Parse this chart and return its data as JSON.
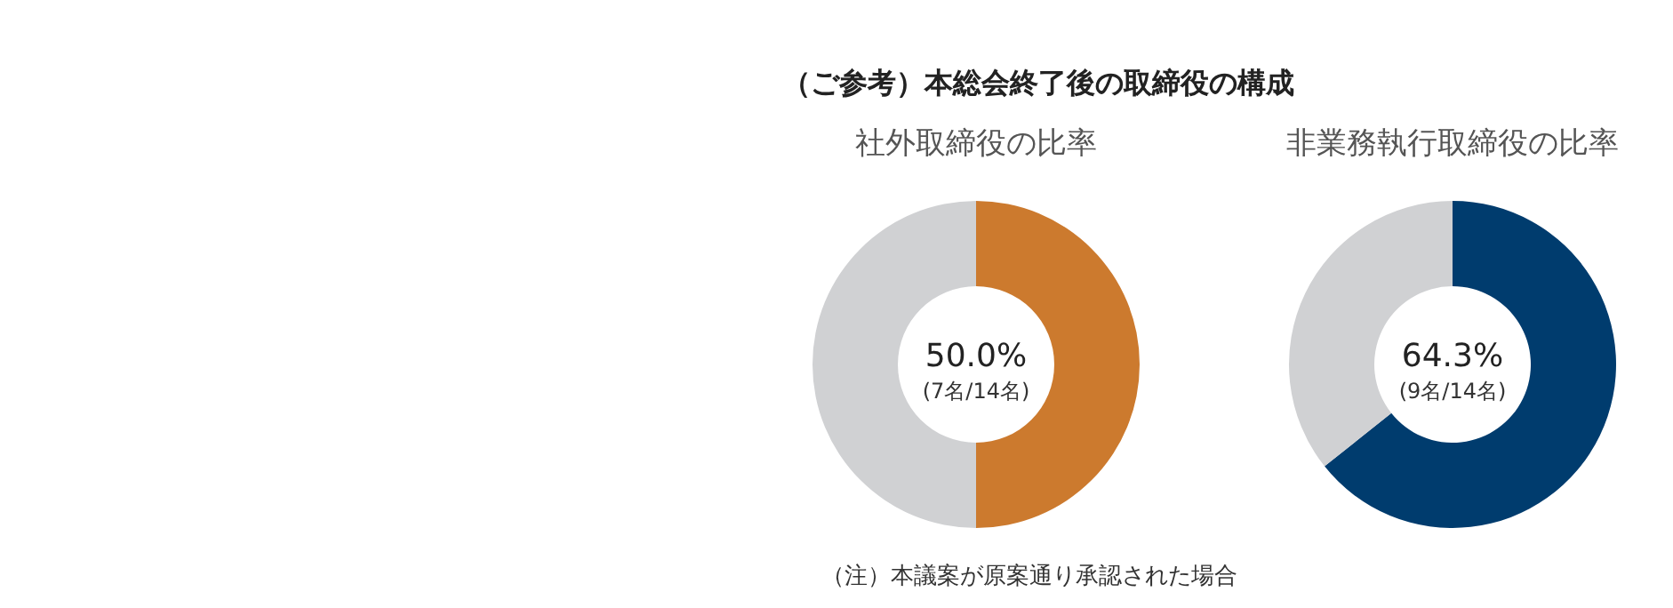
{
  "chart_data": [
    {
      "type": "donut",
      "title": "（ご参考）本総会終了後の取締役の構成",
      "subtitle": "社外取締役の比率",
      "categories": [
        null,
        null
      ],
      "values": [
        50.0,
        50.0
      ],
      "colors": [
        "#cc7a2e",
        "#d0d1d3"
      ],
      "annotations": [
        "50.0%",
        "(7名/14名)",
        "（注）本議案が原案通り承認された場合"
      ]
    },
    {
      "type": "donut",
      "subtitle": "非業務執行取締役の比率",
      "categories": [
        null,
        null
      ],
      "values": [
        64.3,
        35.7
      ],
      "colors": [
        "#003c6e",
        "#d0d1d3"
      ],
      "annotations": [
        "64.3%",
        "(9名/14名)"
      ]
    }
  ]
}
